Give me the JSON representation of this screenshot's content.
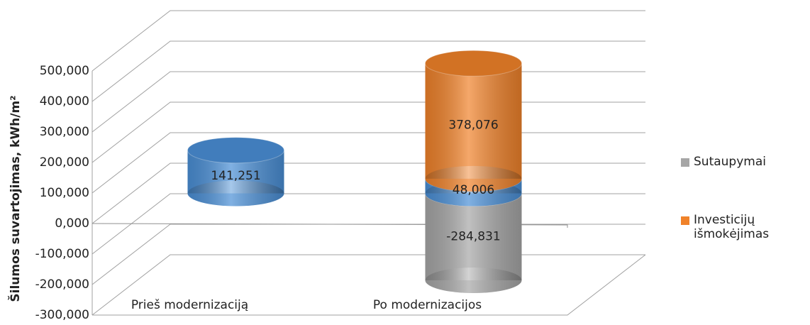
{
  "chart_data": {
    "type": "bar3d_stacked",
    "y_label": "Šilumos suvartojimas, kWh/m²",
    "categories": [
      "Prieš modernizaciją",
      "Po modernizacijos"
    ],
    "series": [
      {
        "name": "Sutaupymai",
        "color": "#a6a6a6",
        "values": [
          null,
          -284.831
        ],
        "value_labels": [
          null,
          "-284,831"
        ]
      },
      {
        "color": "#4a8fd6",
        "values": [
          141.251,
          48.006
        ],
        "value_labels": [
          "141,251",
          "48,006"
        ]
      },
      {
        "name": "Investicijų išmokėjimas",
        "color": "#f0822a",
        "values": [
          null,
          378.076
        ],
        "value_labels": [
          null,
          "378,076"
        ]
      }
    ],
    "ylim": [
      -300,
      500
    ],
    "yticks": [
      {
        "value": -300,
        "label": "-300,000"
      },
      {
        "value": -200,
        "label": "-200,000"
      },
      {
        "value": -100,
        "label": "-100,000"
      },
      {
        "value": 0,
        "label": "0,000"
      },
      {
        "value": 100,
        "label": "100,000"
      },
      {
        "value": 200,
        "label": "200,000"
      },
      {
        "value": 300,
        "label": "300,000"
      },
      {
        "value": 400,
        "label": "400,000"
      },
      {
        "value": 500,
        "label": "500,000"
      }
    ],
    "legend": "right"
  }
}
